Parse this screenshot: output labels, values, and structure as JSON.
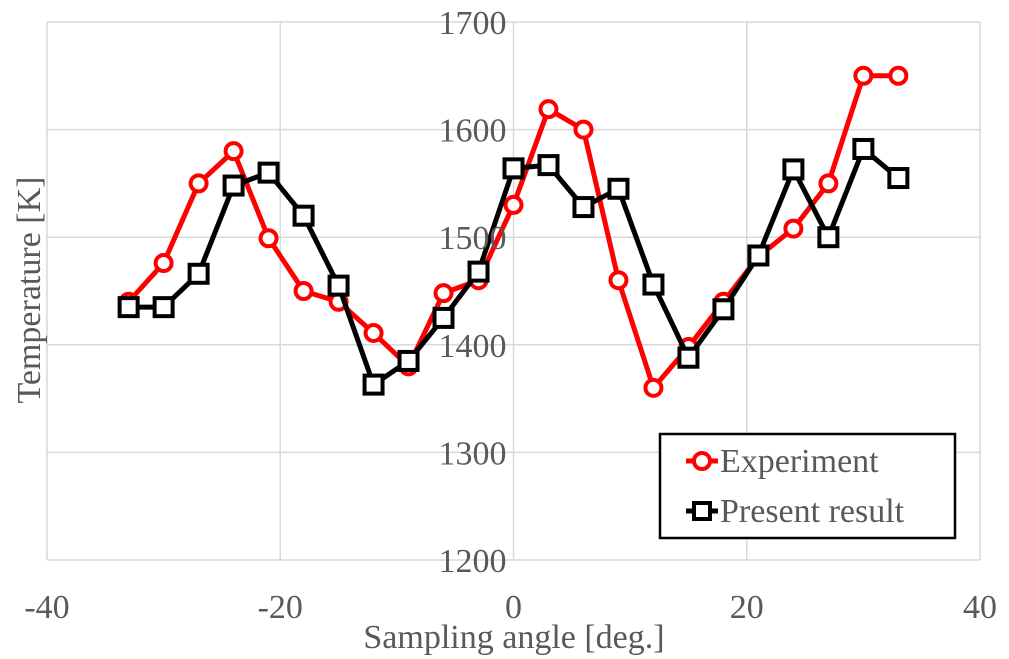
{
  "chart_data": {
    "type": "line",
    "title": "",
    "xlabel": "Sampling angle [deg.]",
    "ylabel": "Temperature  [K]",
    "xlim": [
      -40,
      40
    ],
    "ylim": [
      1200,
      1700
    ],
    "xticks": [
      -40,
      -20,
      0,
      20,
      40
    ],
    "yticks": [
      1200,
      1300,
      1400,
      1500,
      1600,
      1700
    ],
    "xtick_labels": [
      "-40",
      "-20",
      "0",
      "20",
      "40"
    ],
    "ytick_labels": [
      "1200",
      "1300",
      "1400",
      "1500",
      "1600",
      "1700"
    ],
    "grid": true,
    "legend_position": "bottom-right",
    "series": [
      {
        "name": "Experiment",
        "color": "#ff0000",
        "marker": "circle",
        "x": [
          -33,
          -30,
          -27,
          -24,
          -21,
          -18,
          -15,
          -12,
          -9,
          -6,
          -3,
          0,
          3,
          6,
          9,
          12,
          15,
          18,
          21,
          24,
          27,
          30,
          33
        ],
        "y": [
          1440,
          1476,
          1550,
          1580,
          1499,
          1450,
          1440,
          1411,
          1380,
          1448,
          1460,
          1530,
          1619,
          1600,
          1460,
          1360,
          1398,
          1440,
          1482,
          1508,
          1550,
          1650,
          1650
        ]
      },
      {
        "name": "Present result",
        "color": "#000000",
        "marker": "square",
        "x": [
          -33,
          -30,
          -27,
          -24,
          -21,
          -18,
          -15,
          -12,
          -9,
          -6,
          -3,
          0,
          3,
          6,
          9,
          12,
          15,
          18,
          21,
          24,
          27,
          30,
          33
        ],
        "y": [
          1435,
          1435,
          1466,
          1548,
          1560,
          1520,
          1455,
          1363,
          1385,
          1425,
          1468,
          1564,
          1567,
          1528,
          1545,
          1456,
          1388,
          1433,
          1483,
          1563,
          1500,
          1582,
          1555
        ]
      }
    ]
  }
}
